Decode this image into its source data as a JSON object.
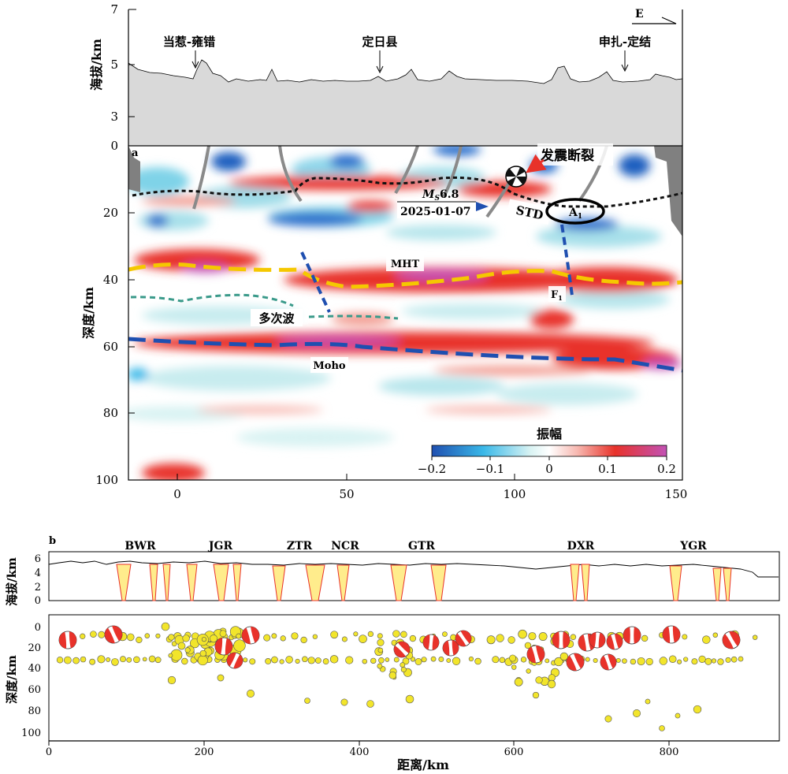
{
  "panel_a": {
    "label": "a",
    "elevation_axis": {
      "title": "海拔/km",
      "ticks": [
        "7",
        "5",
        "3",
        "0"
      ]
    },
    "depth_axis": {
      "title": "深度/km",
      "ticks": [
        "20",
        "40",
        "60",
        "80",
        "100"
      ]
    },
    "distance_ticks": [
      "0",
      "50",
      "100",
      "150"
    ],
    "direction": "E",
    "places": [
      {
        "name": "当惹-雍错",
        "distance_km": 5
      },
      {
        "name": "定日县",
        "distance_km": 60
      },
      {
        "name": "申扎-定结",
        "distance_km": 133
      }
    ],
    "annotations": {
      "fault": "发震断裂",
      "magnitude": "M",
      "magnitude_sub": "S",
      "magnitude_value": "6.8",
      "date": "2025-01-07",
      "std": "STD",
      "a1": "A",
      "a1_sub": "1",
      "mht": "MHT",
      "f1": "F",
      "f1_sub": "1",
      "multiple": "多次波",
      "moho": "Moho"
    },
    "colorbar": {
      "title": "振幅",
      "ticks": [
        "−0.2",
        "−0.1",
        "0",
        "0.1",
        "0.2"
      ],
      "range": [
        -0.2,
        0.2
      ]
    }
  },
  "panel_b": {
    "label": "b",
    "elevation_axis": {
      "title": "海拔/km",
      "ticks": [
        "6",
        "4",
        "2",
        "0"
      ]
    },
    "depth_axis": {
      "title": "深度/km",
      "ticks": [
        "0",
        "20",
        "40",
        "60",
        "80",
        "100"
      ]
    },
    "distance_axis": {
      "title": "距离/km",
      "ticks": [
        "0",
        "200",
        "400",
        "600",
        "800"
      ]
    },
    "rifts": [
      "BWR",
      "JGR",
      "ZTR",
      "NCR",
      "GTR",
      "DXR",
      "YGR"
    ]
  },
  "colors": {
    "red": "#e8322a",
    "magenta": "#c252b5",
    "blue": "#1f5fbf",
    "yellow": "#ffe600",
    "grey_terrain": "#d9d9d9",
    "seismic_yellow": "#f2e52b"
  }
}
